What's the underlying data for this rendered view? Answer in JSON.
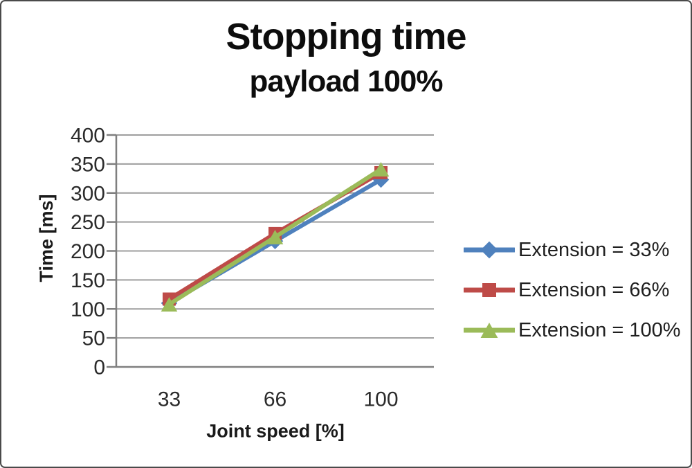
{
  "chart": {
    "title": "Stopping time",
    "subtitle": "payload 100%"
  },
  "chart_data": {
    "type": "line",
    "title": "Stopping time",
    "subtitle": "payload 100%",
    "xlabel": "Joint speed [%]",
    "ylabel": "Time [ms]",
    "categories": [
      "33",
      "66",
      "100"
    ],
    "ylim": [
      0,
      400
    ],
    "yticks": [
      0,
      50,
      100,
      150,
      200,
      250,
      300,
      350,
      400
    ],
    "grid": "horizontal-only",
    "legend_position": "right",
    "series": [
      {
        "name": "Extension = 33%",
        "marker": "diamond",
        "color": "#4F81BD",
        "values": [
          110,
          217,
          323
        ]
      },
      {
        "name": "Extension = 66%",
        "marker": "square",
        "color": "#BE4B48",
        "values": [
          117,
          230,
          335
        ]
      },
      {
        "name": "Extension = 100%",
        "marker": "triangle",
        "color": "#9BBB59",
        "values": [
          108,
          224,
          341
        ]
      }
    ]
  },
  "colors": {
    "background": "#ffffff",
    "border": "#4a4a4a",
    "title_text": "#0d0d0d",
    "tick_text": "#2b2b2b",
    "axis_title_text": "#1a1a1a",
    "legend_text": "#1f1f1f",
    "gridline": "#9d9d9d",
    "axis_line": "#7f7f7f"
  }
}
